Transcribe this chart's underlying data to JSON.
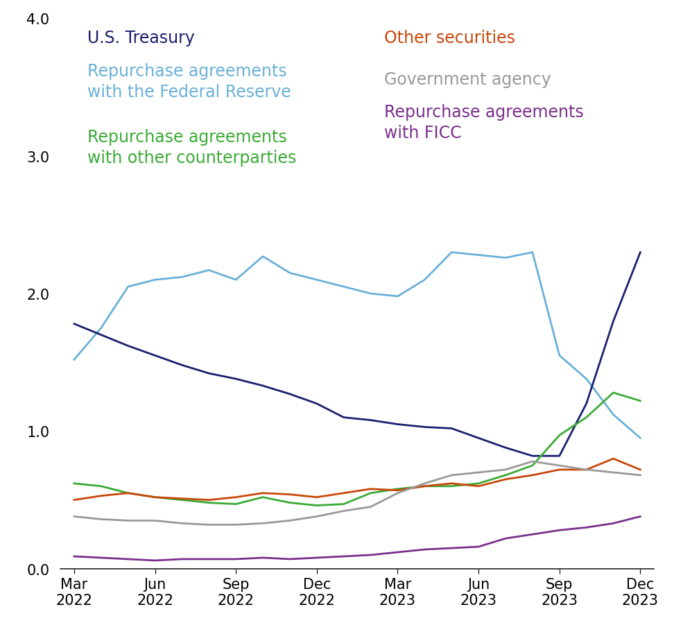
{
  "ylim": [
    0.0,
    4.0
  ],
  "yticks": [
    0.0,
    1.0,
    2.0,
    3.0,
    4.0
  ],
  "x_labels": [
    "Mar\n2022",
    "Jun\n2022",
    "Sep\n2022",
    "Dec\n2022",
    "Mar\n2023",
    "Jun\n2023",
    "Sep\n2023",
    "Dec\n2023"
  ],
  "colors": {
    "us_treasury": "#1b1f6e",
    "fed_reserve": "#6ab0d8",
    "other_cp": "#3aaa35",
    "other_sec": "#c8470a",
    "gov_agency": "#999999",
    "ficc": "#7b2f8c"
  },
  "linewidth": 2.0,
  "background_color": "#ffffff",
  "legend_fontsize": 17,
  "tick_fontsize": 15,
  "us_treasury": [
    1.78,
    1.7,
    1.62,
    1.55,
    1.48,
    1.42,
    1.38,
    1.33,
    1.27,
    1.2,
    1.1,
    1.08,
    1.05,
    1.03,
    1.02,
    0.95,
    0.88,
    0.82,
    0.82,
    1.2,
    1.8,
    2.3
  ],
  "fed_reserve": [
    1.52,
    1.75,
    2.05,
    2.1,
    2.12,
    2.17,
    2.1,
    2.27,
    2.15,
    2.1,
    2.05,
    2.0,
    1.98,
    2.1,
    2.3,
    2.28,
    2.26,
    2.3,
    1.55,
    1.38,
    1.12,
    0.95
  ],
  "other_cp": [
    0.62,
    0.6,
    0.55,
    0.52,
    0.5,
    0.48,
    0.47,
    0.52,
    0.48,
    0.46,
    0.47,
    0.55,
    0.58,
    0.6,
    0.6,
    0.62,
    0.68,
    0.75,
    0.97,
    1.1,
    1.28,
    1.22
  ],
  "other_sec": [
    0.5,
    0.53,
    0.55,
    0.52,
    0.51,
    0.5,
    0.52,
    0.55,
    0.54,
    0.52,
    0.55,
    0.58,
    0.57,
    0.6,
    0.62,
    0.6,
    0.65,
    0.68,
    0.72,
    0.72,
    0.8,
    0.72
  ],
  "gov_agency": [
    0.38,
    0.36,
    0.35,
    0.35,
    0.33,
    0.32,
    0.32,
    0.33,
    0.35,
    0.38,
    0.42,
    0.45,
    0.55,
    0.62,
    0.68,
    0.7,
    0.72,
    0.78,
    0.75,
    0.72,
    0.7,
    0.68
  ],
  "ficc_repo": [
    0.09,
    0.08,
    0.07,
    0.06,
    0.07,
    0.07,
    0.07,
    0.08,
    0.07,
    0.08,
    0.09,
    0.1,
    0.12,
    0.14,
    0.15,
    0.16,
    0.22,
    0.25,
    0.28,
    0.3,
    0.33,
    0.38
  ]
}
